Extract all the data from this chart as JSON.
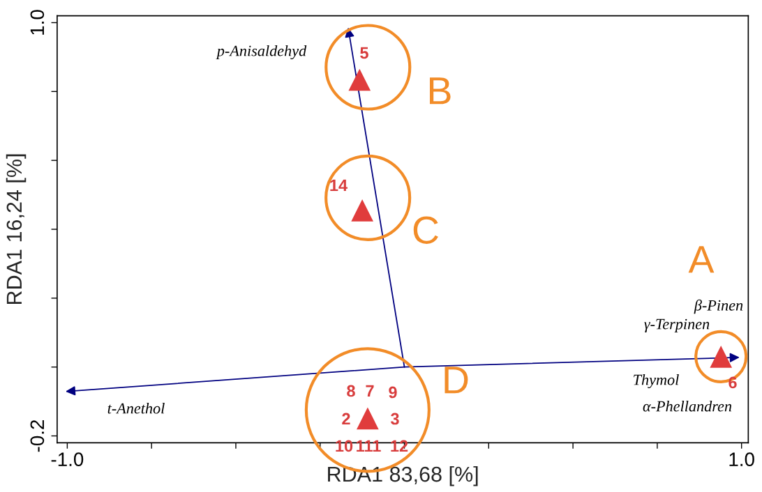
{
  "chart_data": {
    "type": "scatter",
    "xlabel": "RDA1 83,68 [%]",
    "ylabel": "RDA1 16,24 [%]",
    "xlim": [
      -1.03,
      1.02
    ],
    "ylim": [
      -0.22,
      1.02
    ],
    "xticks": [
      {
        "value": -1.0,
        "label": "-1.0"
      },
      {
        "value": -0.75,
        "label": null
      },
      {
        "value": -0.5,
        "label": null
      },
      {
        "value": -0.25,
        "label": null
      },
      {
        "value": 0,
        "label": null
      },
      {
        "value": 0.25,
        "label": null
      },
      {
        "value": 0.5,
        "label": null
      },
      {
        "value": 0.75,
        "label": null
      },
      {
        "value": 1.0,
        "label": "1.0"
      }
    ],
    "yticks": [
      {
        "value": -0.2,
        "label": "-0.2"
      },
      {
        "value": 0,
        "label": null
      },
      {
        "value": 0.2,
        "label": null
      },
      {
        "value": 0.4,
        "label": null
      },
      {
        "value": 0.6,
        "label": null
      },
      {
        "value": 0.8,
        "label": null
      },
      {
        "value": 1.0,
        "label": "1.0"
      }
    ],
    "grid": false,
    "marker": "triangle",
    "series": [
      {
        "color": "#e03c3c",
        "x": [
          -0.133,
          -0.125,
          0.939,
          -0.109
        ],
        "values": [
          0.834,
          0.455,
          0.03,
          -0.149
        ]
      },
      {
        "type": "line",
        "marker": "none",
        "color": "#000080",
        "x": [
          0,
          -0.167
        ],
        "values": [
          0,
          0.986
        ]
      },
      {
        "type": "line",
        "marker": "none",
        "color": "#000080",
        "x": [
          0,
          -1.005
        ],
        "values": [
          0,
          -0.071
        ]
      },
      {
        "type": "line",
        "marker": "none",
        "color": "#000080",
        "x": [
          0,
          0.994
        ],
        "values": [
          0,
          0.028
        ]
      }
    ],
    "annotations": [
      "p-Anisaldehyd",
      "t-Anethol",
      "β-Pinen",
      "γ-Terpinen",
      "Thymol",
      "α-Phellandren",
      "A",
      "B",
      "C",
      "D",
      "5",
      "14",
      "6",
      "8",
      "7",
      "9",
      "2",
      "3",
      "10",
      "111",
      "12"
    ]
  }
}
